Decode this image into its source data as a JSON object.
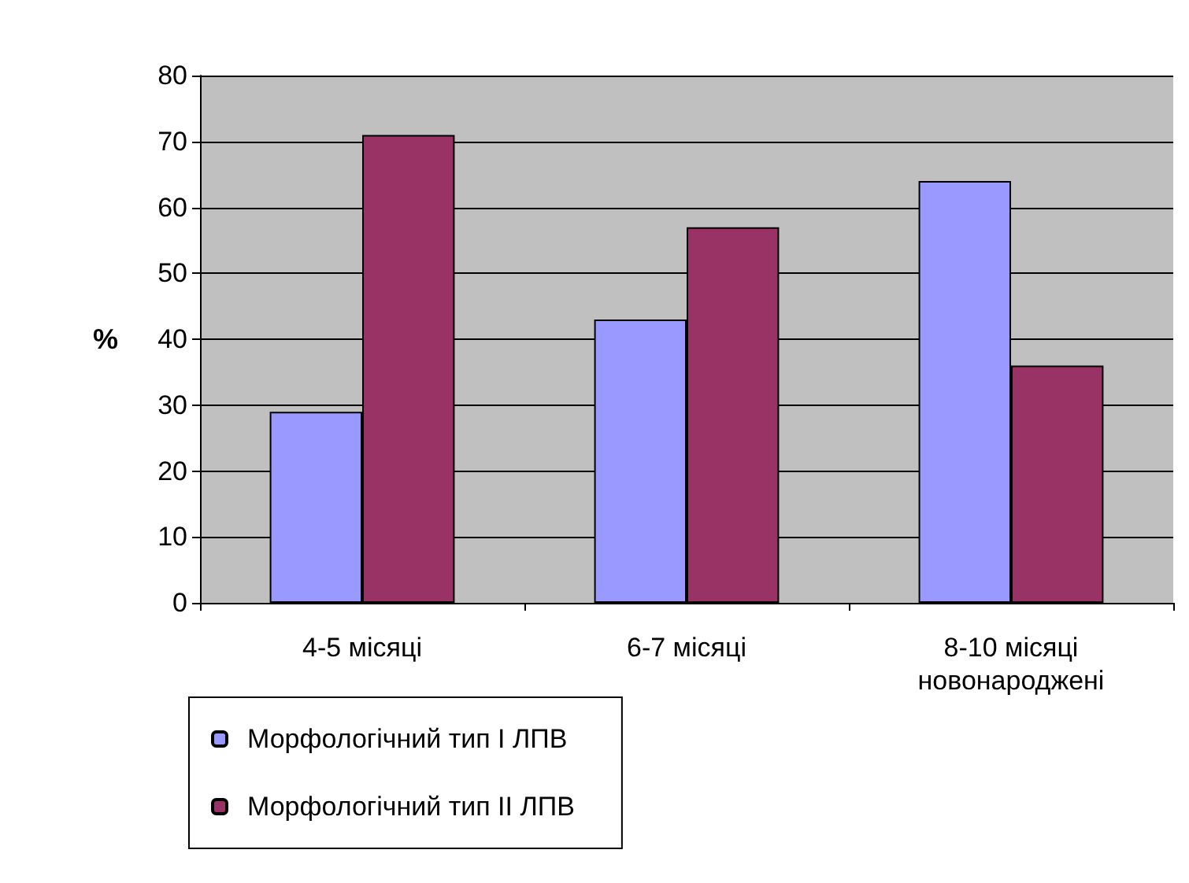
{
  "chart_data": {
    "type": "bar",
    "ylabel": "%",
    "categories": [
      "4-5 місяці",
      "6-7 місяці",
      "8-10 місяці новонароджені"
    ],
    "series": [
      {
        "name": "Морфологічний тип I ЛПВ",
        "color": "#9999ff",
        "values": [
          29,
          43,
          64
        ]
      },
      {
        "name": "Морфологічний тип II ЛПВ",
        "color": "#993366",
        "values": [
          71,
          57,
          36
        ]
      }
    ],
    "ylim": [
      0,
      80
    ],
    "yticks": [
      0,
      10,
      20,
      30,
      40,
      50,
      60,
      70,
      80
    ],
    "grid": "y",
    "legend": "bottom left"
  }
}
